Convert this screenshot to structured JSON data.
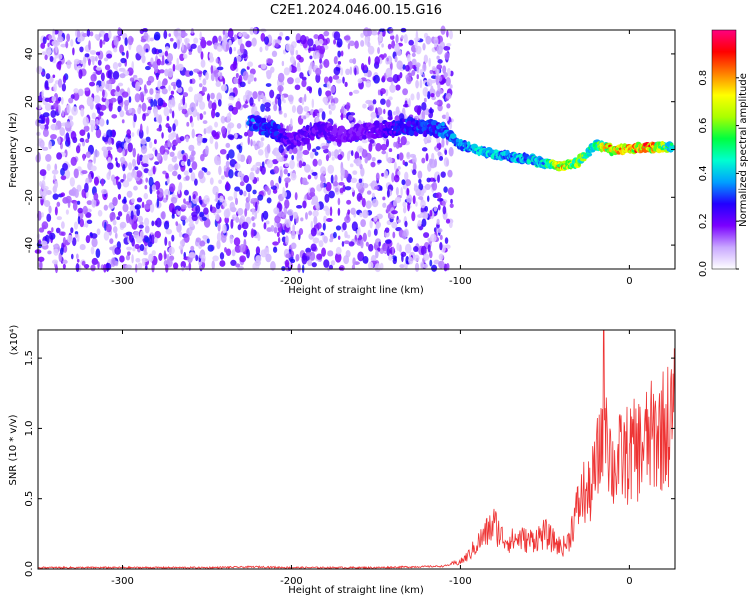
{
  "title": "C2E1.2024.046.00.15.G16",
  "chart_data": [
    {
      "type": "heatmap",
      "xlabel": "Height of straight line (km)",
      "ylabel": "Frequency (Hz)",
      "xlim": [
        -350,
        27
      ],
      "ylim": [
        -50,
        50
      ],
      "x_ticks": [
        -300,
        -200,
        -100,
        0
      ],
      "x_tick_labels": [
        "-300",
        "-200",
        "-100",
        "0"
      ],
      "y_ticks": [
        40,
        20,
        0,
        -20,
        -40
      ],
      "y_tick_labels": [
        "40",
        "20",
        "0",
        "-20",
        "-40"
      ],
      "colorbar": {
        "label": "Normalized spectral amplitude",
        "range": [
          0.0,
          1.0
        ],
        "ticks": [
          0.0,
          0.2,
          0.4,
          0.6,
          0.8
        ],
        "tick_labels": [
          "0.0",
          "0.2",
          "0.4",
          "0.6",
          "0.8"
        ],
        "colormap": [
          "#ffffff",
          "#c9a8ff",
          "#7a00ff",
          "#2200ff",
          "#00a0ff",
          "#00ffd0",
          "#00ff40",
          "#aaff00",
          "#ffff00",
          "#ff8000",
          "#ff0000",
          "#ff0080"
        ]
      },
      "noise_region": [
        -350,
        -105
      ],
      "signal_track": {
        "x": [
          -225,
          -210,
          -200,
          -185,
          -170,
          -150,
          -130,
          -110,
          -100,
          -90,
          -80,
          -70,
          -60,
          -50,
          -40,
          -30,
          -20,
          -15,
          -10,
          -5,
          0,
          5,
          10,
          15,
          20,
          25
        ],
        "frequency": [
          12,
          8,
          3,
          8,
          6,
          8,
          10,
          8,
          2,
          0,
          -2,
          -3,
          -4,
          -6,
          -7,
          -5,
          2,
          1,
          0,
          0,
          0,
          1,
          1,
          1,
          1,
          1
        ],
        "amplitude": [
          0.35,
          0.3,
          0.2,
          0.2,
          0.15,
          0.2,
          0.3,
          0.35,
          0.4,
          0.45,
          0.45,
          0.4,
          0.45,
          0.5,
          0.9,
          0.7,
          0.5,
          0.8,
          0.95,
          0.9,
          1.0,
          0.9,
          0.95,
          0.9,
          0.7,
          0.5
        ]
      }
    },
    {
      "type": "line",
      "xlabel": "Height of straight line (km)",
      "ylabel": "SNR (10 * v/v)",
      "y_scale_label": "(x10⁴)",
      "xlim": [
        -350,
        27
      ],
      "ylim": [
        0,
        1.7
      ],
      "x_ticks": [
        -300,
        -200,
        -100,
        0
      ],
      "x_tick_labels": [
        "-300",
        "-200",
        "-100",
        "0"
      ],
      "y_ticks": [
        0.0,
        0.5,
        1.0,
        1.5
      ],
      "y_tick_labels": [
        "0.0",
        "0.5",
        "1.0",
        "1.5"
      ],
      "color": "#ee3333",
      "series": [
        {
          "x": [
            -350,
            -300,
            -250,
            -220,
            -200,
            -150,
            -110,
            -100,
            -95,
            -90,
            -85,
            -80,
            -75,
            -70,
            -65,
            -60,
            -55,
            -50,
            -45,
            -40,
            -36,
            -33,
            -30,
            -27,
            -25,
            -22,
            -20,
            -18,
            -16,
            -15,
            -14,
            -12,
            -10,
            -8,
            -5,
            0,
            5,
            10,
            15,
            20,
            25,
            27
          ],
          "y": [
            0.01,
            0.01,
            0.01,
            0.015,
            0.01,
            0.01,
            0.02,
            0.05,
            0.1,
            0.18,
            0.25,
            0.32,
            0.22,
            0.2,
            0.22,
            0.2,
            0.22,
            0.25,
            0.2,
            0.15,
            0.2,
            0.35,
            0.45,
            0.55,
            0.5,
            0.6,
            0.7,
            0.8,
            1.0,
            1.65,
            1.2,
            0.9,
            0.7,
            0.75,
            0.78,
            0.82,
            0.85,
            0.9,
            0.95,
            1.0,
            1.05,
            1.1
          ]
        }
      ]
    }
  ]
}
